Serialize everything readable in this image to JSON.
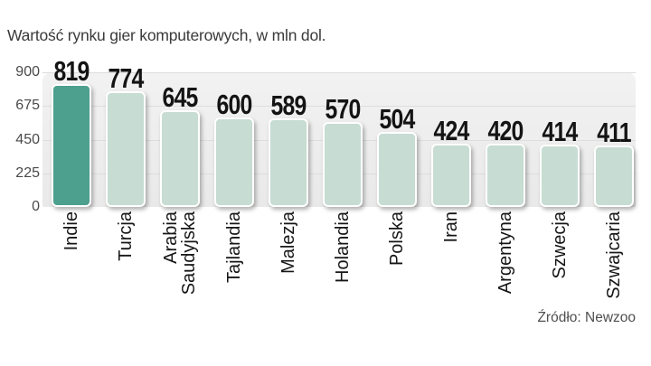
{
  "title": "Wartość rynku gier komputerowych, w mln dol.",
  "source": "Źródło: Newzoo",
  "chart_data": {
    "type": "bar",
    "title": "Wartość rynku gier komputerowych, w mln dol.",
    "categories": [
      "Indie",
      "Turcja",
      "Arabia Saudyjska",
      "Tajlandia",
      "Malezja",
      "Holandia",
      "Polska",
      "Iran",
      "Argentyna",
      "Szwecja",
      "Szwajcaria"
    ],
    "values": [
      819,
      774,
      645,
      600,
      589,
      570,
      504,
      424,
      420,
      414,
      411
    ],
    "unit": "mln dol.",
    "xlabel": "",
    "ylabel": "",
    "ylim": [
      0,
      900
    ],
    "yticks": [
      0,
      225,
      450,
      675,
      900
    ],
    "grid": true,
    "legend": false,
    "highlight_category": "Indie",
    "source": "Źródło: Newzoo",
    "colors": {
      "highlight": "#4d9f8e",
      "bar": "#c7dcd2",
      "bar_border": "#ffffff",
      "plot_bg": "#ededed",
      "gridline": "#dddddd",
      "value_label": "#141414",
      "category_label": "#161616",
      "tick_label": "#4a4a4a",
      "title": "#3a3a3a",
      "source": "#4f4f4f"
    }
  }
}
